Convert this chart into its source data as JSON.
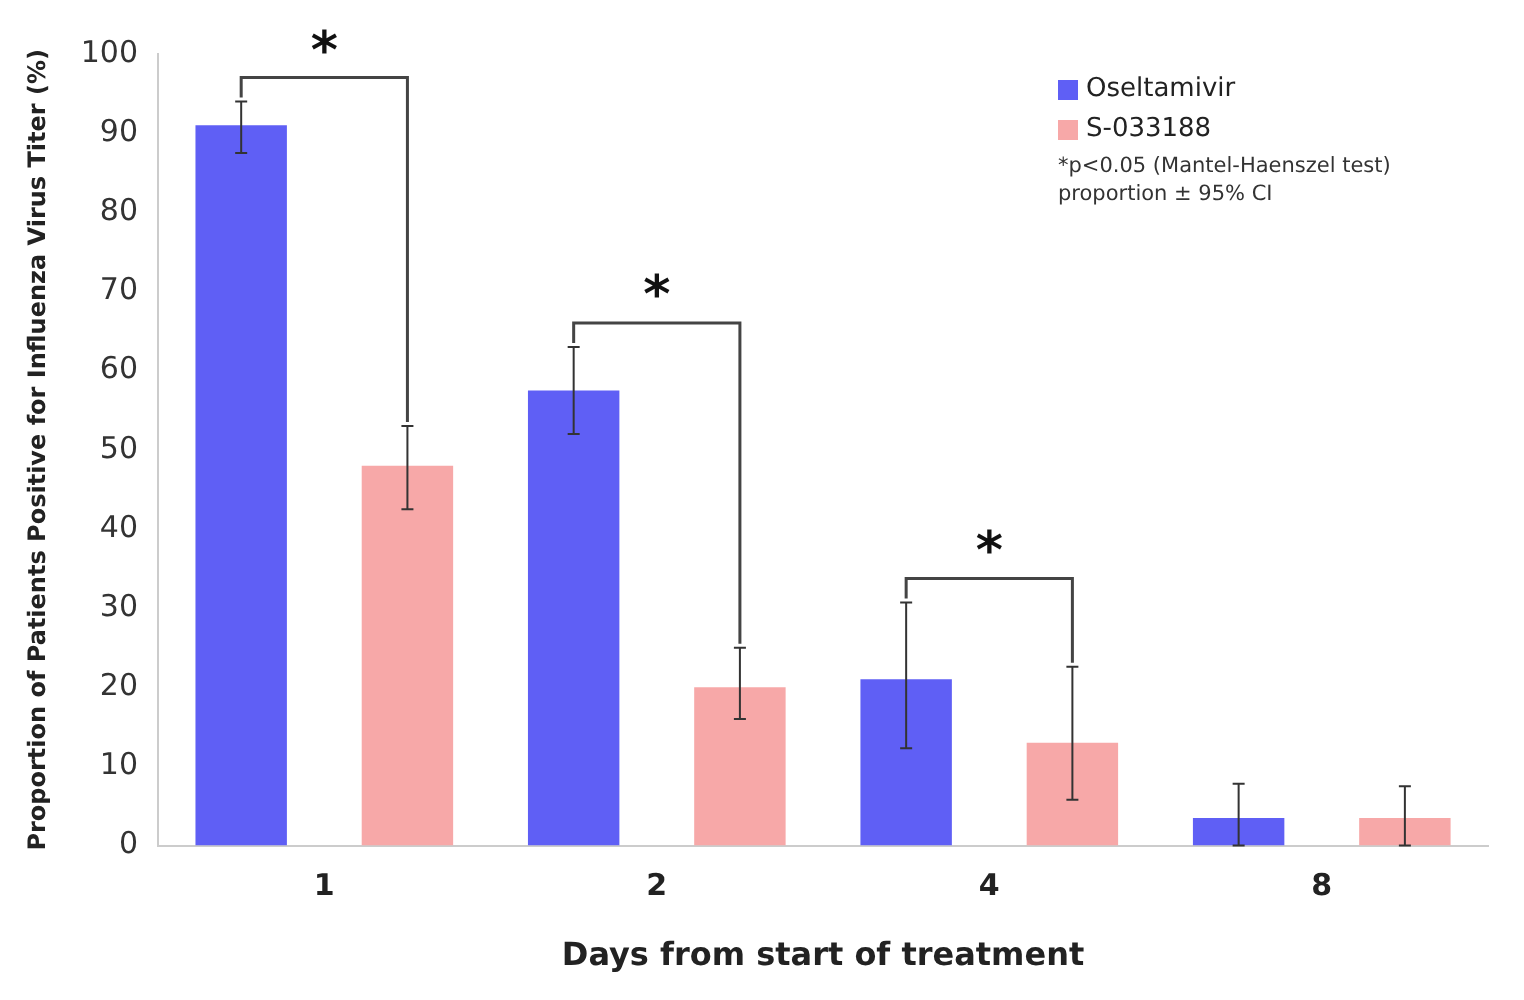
{
  "chart_data": {
    "type": "bar",
    "xlabel": "Days from start of treatment",
    "ylabel": "Proportion of Patients Positive for Influenza Virus Titer (%)",
    "categories": [
      "1",
      "2",
      "4",
      "8"
    ],
    "series": [
      {
        "name": "Oseltamivir",
        "color": "#5f5ff5",
        "values": [
          91,
          57.5,
          21,
          3.5
        ],
        "errors": [
          [
            87.5,
            94
          ],
          [
            52,
            63
          ],
          [
            12.3,
            30.7
          ],
          [
            0,
            7.8
          ]
        ]
      },
      {
        "name": "S-033188",
        "color": "#f7a8a8",
        "values": [
          48,
          20,
          13,
          3.5
        ],
        "errors": [
          [
            42.5,
            53
          ],
          [
            16,
            25
          ],
          [
            5.8,
            22.6
          ],
          [
            0,
            7.5
          ]
        ]
      }
    ],
    "ylim": [
      0,
      100
    ],
    "yticks": [
      0,
      10,
      20,
      30,
      40,
      50,
      60,
      70,
      80,
      90,
      100
    ],
    "grid": false,
    "legend": "top right",
    "annotations": [
      "*",
      "*",
      "*",
      "*p<0.05 (Mantel-Haenszel test)",
      "proportion ± 95% CI"
    ]
  }
}
